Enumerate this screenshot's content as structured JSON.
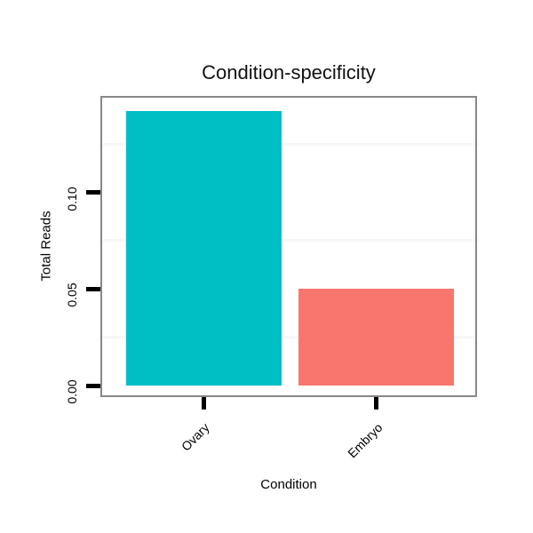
{
  "chart_data": {
    "type": "bar",
    "title": "Condition-specificity",
    "xlabel": "Condition",
    "ylabel": "Total Reads",
    "categories": [
      "Ovary",
      "Embryo"
    ],
    "values": [
      0.142,
      0.05
    ],
    "bar_colors": [
      "#00BFC4",
      "#F8766D"
    ],
    "ylim": [
      -0.005,
      0.149
    ],
    "ytick_labels": [
      "0.00",
      "0.05",
      "0.10"
    ],
    "ytick_values": [
      0,
      0.05,
      0.1
    ],
    "minor_grid_values": [
      0.025,
      0.075,
      0.125
    ],
    "grid": "horizontal minor gridlines only",
    "legend": "none",
    "x_tick_label_rotation_deg": 45,
    "y_tick_label_rotation_deg": 90,
    "colors": {
      "panel_border": "#888888",
      "minor_grid": "#f7f7f7",
      "tick": "#000000",
      "text": "#000000",
      "background": "#ffffff"
    }
  }
}
